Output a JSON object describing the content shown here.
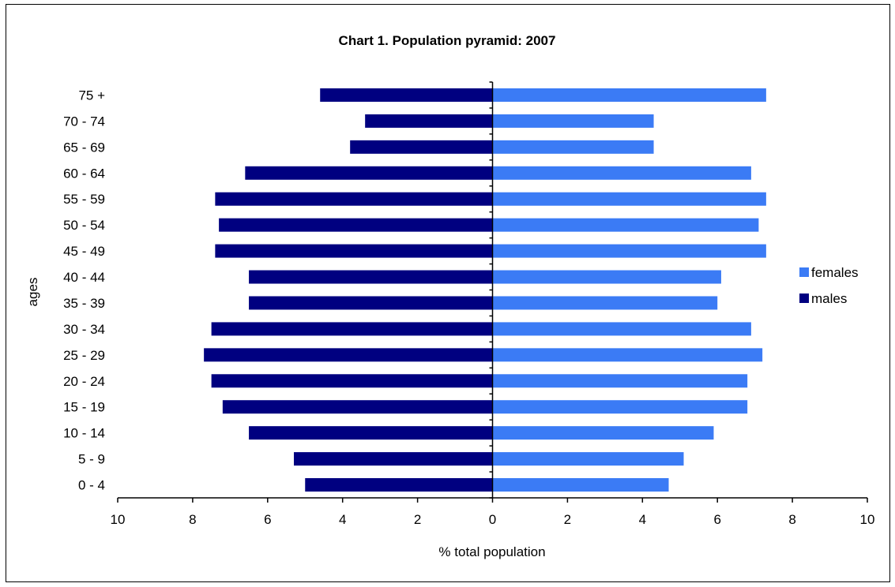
{
  "chart_data": {
    "type": "bar",
    "orientation": "horizontal",
    "title": "Chart 1. Population pyramid: 2007",
    "xlabel": "% total population",
    "ylabel": "ages",
    "xlim": [
      -10,
      10
    ],
    "x_ticks": [
      -10,
      -8,
      -6,
      -4,
      -2,
      0,
      2,
      4,
      6,
      8,
      10
    ],
    "x_tick_labels": [
      "10",
      "8",
      "6",
      "4",
      "2",
      "0",
      "2",
      "4",
      "6",
      "8",
      "10"
    ],
    "categories": [
      "0  -  4",
      "5 - 9",
      "10 - 14",
      "15 - 19",
      "20 - 24",
      "25 - 29",
      "30 - 34",
      "35 - 39",
      "40 - 44",
      "45 - 49",
      "50 - 54",
      "55 - 59",
      "60 - 64",
      "65 - 69",
      "70 - 74",
      "75 +"
    ],
    "series": [
      {
        "name": "females",
        "color": "#3b7bf5",
        "values": [
          4.7,
          5.1,
          5.9,
          6.8,
          6.8,
          7.2,
          6.9,
          6.0,
          6.1,
          7.3,
          7.1,
          7.3,
          6.9,
          4.3,
          4.3,
          7.3
        ]
      },
      {
        "name": "males",
        "color": "#000080",
        "values": [
          5.0,
          5.3,
          6.5,
          7.2,
          7.5,
          7.7,
          7.5,
          6.5,
          6.5,
          7.4,
          7.3,
          7.4,
          6.6,
          3.8,
          3.4,
          4.6
        ]
      }
    ],
    "legend_position": "right",
    "grid": false
  }
}
